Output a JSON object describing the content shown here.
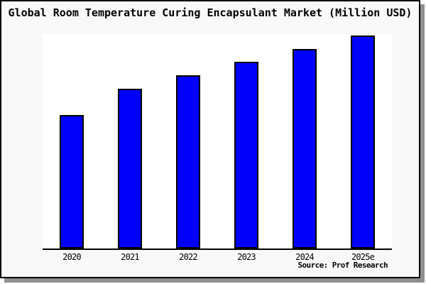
{
  "title": "Global Room Temperature Curing Encapsulant Market (Million USD)",
  "source": "Source: Prof Research",
  "colors": {
    "bar_fill": "#0000ff",
    "bar_border": "#000000",
    "panel_background": "#f8f8f8",
    "plot_background": "#ffffff",
    "panel_border": "#000000",
    "panel_shadow": "#8f8f8f",
    "text": "#000000"
  },
  "chart_data": {
    "type": "bar",
    "categories": [
      "2020",
      "2021",
      "2022",
      "2023",
      "2024",
      "2025e"
    ],
    "values": [
      188,
      225,
      244,
      263,
      281,
      300
    ],
    "title": "Global Room Temperature Curing Encapsulant Market (Million USD)",
    "xlabel": "",
    "ylabel": "",
    "ylim": [
      0,
      302
    ],
    "units": "relative (no y-axis scale shown)",
    "grid": false,
    "legend": false,
    "bar_color": "#0000ff"
  }
}
